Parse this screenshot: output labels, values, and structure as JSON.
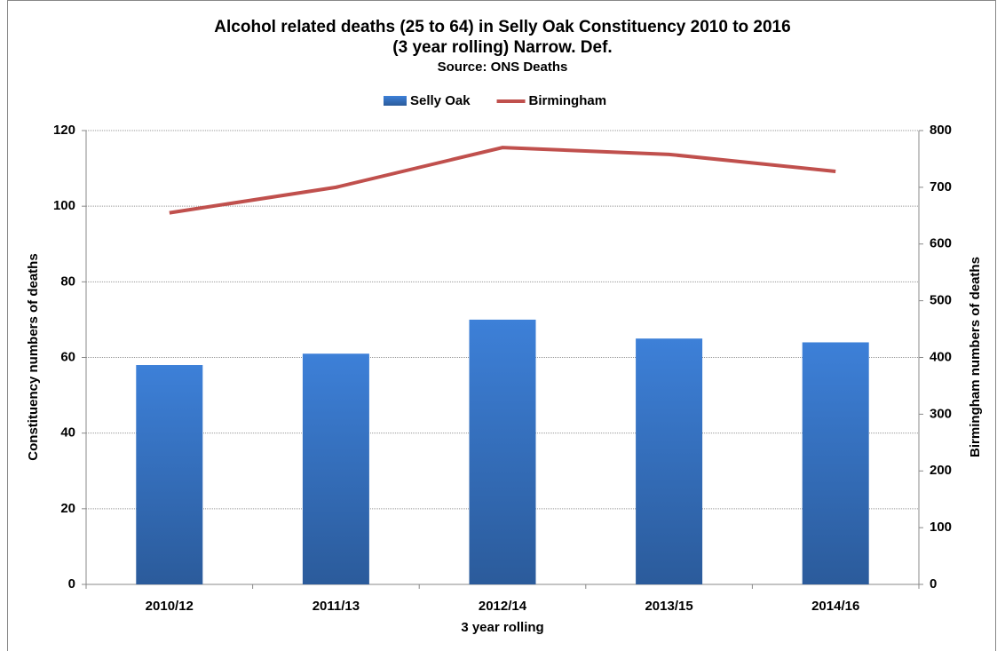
{
  "chart_data": {
    "type": "bar",
    "title": [
      "Alcohol related deaths (25 to 64) in Selly Oak Constituency 2010 to 2016",
      "(3 year rolling) Narrow. Def."
    ],
    "subtitle": "Source: ONS Deaths",
    "x_label": "3 year rolling",
    "y_label": "Constituency numbers of deaths",
    "y2_label": "Birmingham numbers of deaths",
    "categories": [
      "2010/12",
      "2011/13",
      "2012/14",
      "2013/15",
      "2014/16"
    ],
    "series": [
      {
        "name": "Selly Oak",
        "type": "bar",
        "color": "#3a7bd5",
        "values": [
          58,
          61,
          70,
          65,
          64
        ]
      },
      {
        "name": "Birmingham",
        "type": "line",
        "axis": "y2",
        "color": "#c0504d",
        "values": [
          655,
          700,
          770,
          758,
          728
        ]
      }
    ],
    "ylim": [
      0,
      120
    ],
    "yticks": [
      0,
      20,
      40,
      60,
      80,
      100,
      120
    ],
    "y2lim": [
      0,
      800
    ],
    "y2ticks": [
      0,
      100,
      200,
      300,
      400,
      500,
      600,
      700,
      800
    ],
    "grid": true,
    "legend": "top"
  }
}
